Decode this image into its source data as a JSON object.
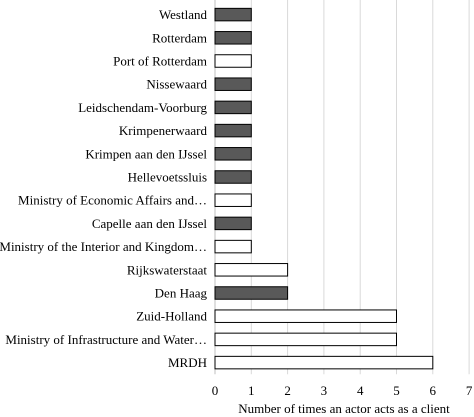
{
  "chart_data": {
    "type": "bar",
    "orientation": "horizontal",
    "xlabel": "Number of times an actor acts as a client",
    "xlim": [
      0,
      7
    ],
    "xticks": [
      "0",
      "1",
      "2",
      "3",
      "4",
      "5",
      "6",
      "7"
    ],
    "grid": "vertical",
    "legend": "none",
    "categories": [
      "Westland",
      "Rotterdam",
      "Port of Rotterdam",
      "Nissewaard",
      "Leidschendam-Voorburg",
      "Krimpenerwaard",
      "Krimpen aan den IJssel",
      "Hellevoetssluis",
      "Ministry of Economic Affairs and…",
      "Capelle aan den IJssel",
      "Ministry of the Interior and Kingdom…",
      "Rijkswaterstaat",
      "Den Haag",
      "Zuid-Holland",
      "Ministry of Infrastructure and Water…",
      "MRDH"
    ],
    "values": [
      1,
      1,
      1,
      1,
      1,
      1,
      1,
      1,
      1,
      1,
      1,
      2,
      2,
      5,
      5,
      6
    ],
    "fills": [
      "dark",
      "dark",
      "white",
      "dark",
      "dark",
      "dark",
      "dark",
      "dark",
      "white",
      "dark",
      "white",
      "white",
      "dark",
      "white",
      "white",
      "white"
    ],
    "colors": {
      "dark": "#595959",
      "white": "#ffffff",
      "edge": "#000000",
      "grid": "#d9d9d9"
    }
  }
}
